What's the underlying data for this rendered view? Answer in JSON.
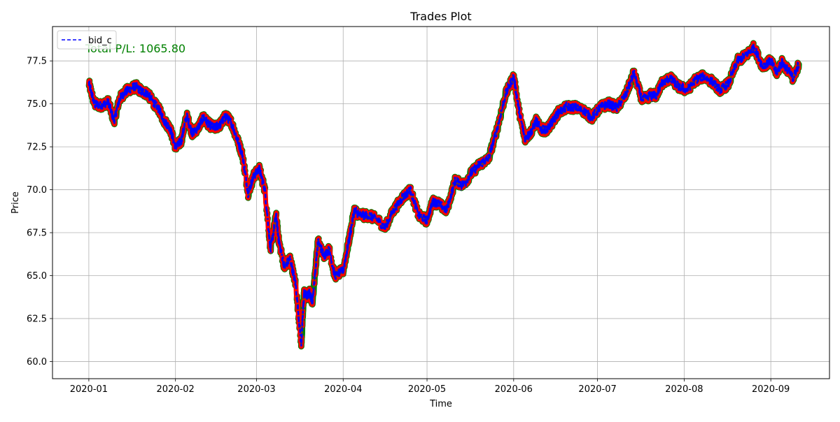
{
  "chart_data": {
    "type": "line",
    "title": "Trades Plot",
    "xlabel": "Time",
    "ylabel": "Price",
    "xlim": [
      "2019-12-19",
      "2020-09-22"
    ],
    "ylim": [
      59.0,
      79.5
    ],
    "x_ticks": [
      "2020-01-01",
      "2020-02-01",
      "2020-03-01",
      "2020-04-01",
      "2020-05-01",
      "2020-06-01",
      "2020-07-01",
      "2020-08-01",
      "2020-09-01"
    ],
    "x_tick_labels": [
      "2020-01",
      "2020-02",
      "2020-03",
      "2020-04",
      "2020-05",
      "2020-06",
      "2020-07",
      "2020-08",
      "2020-09"
    ],
    "y_ticks": [
      60.0,
      62.5,
      65.0,
      67.5,
      70.0,
      72.5,
      75.0,
      77.5
    ],
    "y_tick_labels": [
      "60.0",
      "62.5",
      "65.0",
      "67.5",
      "70.0",
      "72.5",
      "75.0",
      "77.5"
    ],
    "grid": true,
    "legend_position": "upper-left",
    "annotation": "Total P/L: 1065.80",
    "series": [
      {
        "name": "bid_c",
        "style": "dashed",
        "color": "#0000ff",
        "x": [
          "2020-01-01",
          "2020-01-03",
          "2020-01-05",
          "2020-01-08",
          "2020-01-10",
          "2020-01-12",
          "2020-01-14",
          "2020-01-16",
          "2020-01-18",
          "2020-01-20",
          "2020-01-22",
          "2020-01-24",
          "2020-01-26",
          "2020-01-28",
          "2020-01-30",
          "2020-02-01",
          "2020-02-03",
          "2020-02-05",
          "2020-02-07",
          "2020-02-09",
          "2020-02-11",
          "2020-02-13",
          "2020-02-15",
          "2020-02-17",
          "2020-02-19",
          "2020-02-21",
          "2020-02-23",
          "2020-02-25",
          "2020-02-27",
          "2020-02-29",
          "2020-03-02",
          "2020-03-04",
          "2020-03-06",
          "2020-03-08",
          "2020-03-09",
          "2020-03-11",
          "2020-03-13",
          "2020-03-15",
          "2020-03-17",
          "2020-03-18",
          "2020-03-19",
          "2020-03-20",
          "2020-03-21",
          "2020-03-23",
          "2020-03-25",
          "2020-03-27",
          "2020-03-29",
          "2020-04-01",
          "2020-04-03",
          "2020-04-05",
          "2020-04-07",
          "2020-04-10",
          "2020-04-13",
          "2020-04-16",
          "2020-04-19",
          "2020-04-22",
          "2020-04-25",
          "2020-04-28",
          "2020-05-01",
          "2020-05-03",
          "2020-05-05",
          "2020-05-08",
          "2020-05-11",
          "2020-05-14",
          "2020-05-17",
          "2020-05-20",
          "2020-05-23",
          "2020-05-26",
          "2020-05-29",
          "2020-06-01",
          "2020-06-03",
          "2020-06-05",
          "2020-06-07",
          "2020-06-09",
          "2020-06-11",
          "2020-06-13",
          "2020-06-15",
          "2020-06-17",
          "2020-06-20",
          "2020-06-23",
          "2020-06-26",
          "2020-06-29",
          "2020-07-02",
          "2020-07-05",
          "2020-07-08",
          "2020-07-11",
          "2020-07-14",
          "2020-07-17",
          "2020-07-20",
          "2020-07-22",
          "2020-07-24",
          "2020-07-27",
          "2020-07-30",
          "2020-08-02",
          "2020-08-05",
          "2020-08-08",
          "2020-08-11",
          "2020-08-14",
          "2020-08-17",
          "2020-08-20",
          "2020-08-23",
          "2020-08-26",
          "2020-08-29",
          "2020-09-01",
          "2020-09-03",
          "2020-09-05",
          "2020-09-07",
          "2020-09-09",
          "2020-09-11"
        ],
        "y": [
          76.2,
          75.0,
          74.9,
          75.1,
          74.0,
          75.3,
          75.7,
          75.9,
          76.0,
          75.7,
          75.6,
          75.1,
          74.7,
          74.0,
          73.6,
          72.5,
          72.8,
          74.3,
          73.3,
          73.6,
          74.2,
          73.8,
          73.6,
          73.8,
          74.3,
          73.9,
          73.0,
          72.0,
          69.8,
          70.8,
          71.2,
          70.0,
          66.5,
          68.5,
          67.0,
          65.5,
          66.0,
          64.5,
          61.0,
          64.0,
          63.8,
          64.0,
          63.5,
          67.0,
          66.2,
          66.5,
          65.0,
          65.3,
          67.0,
          68.8,
          68.5,
          68.5,
          68.3,
          67.8,
          68.8,
          69.5,
          70.0,
          68.5,
          68.2,
          69.3,
          69.2,
          68.8,
          70.5,
          70.3,
          71.0,
          71.5,
          71.8,
          73.5,
          75.5,
          76.6,
          74.5,
          73.0,
          73.3,
          74.0,
          73.5,
          73.5,
          74.0,
          74.5,
          74.8,
          74.8,
          74.6,
          74.2,
          74.8,
          75.0,
          74.8,
          75.5,
          76.8,
          75.2,
          75.5,
          75.5,
          76.2,
          76.5,
          76.0,
          75.8,
          76.4,
          76.6,
          76.3,
          75.8,
          76.2,
          77.5,
          77.8,
          78.3,
          77.2,
          77.5,
          76.8,
          77.4,
          77.0,
          76.5,
          77.3
        ]
      }
    ]
  }
}
